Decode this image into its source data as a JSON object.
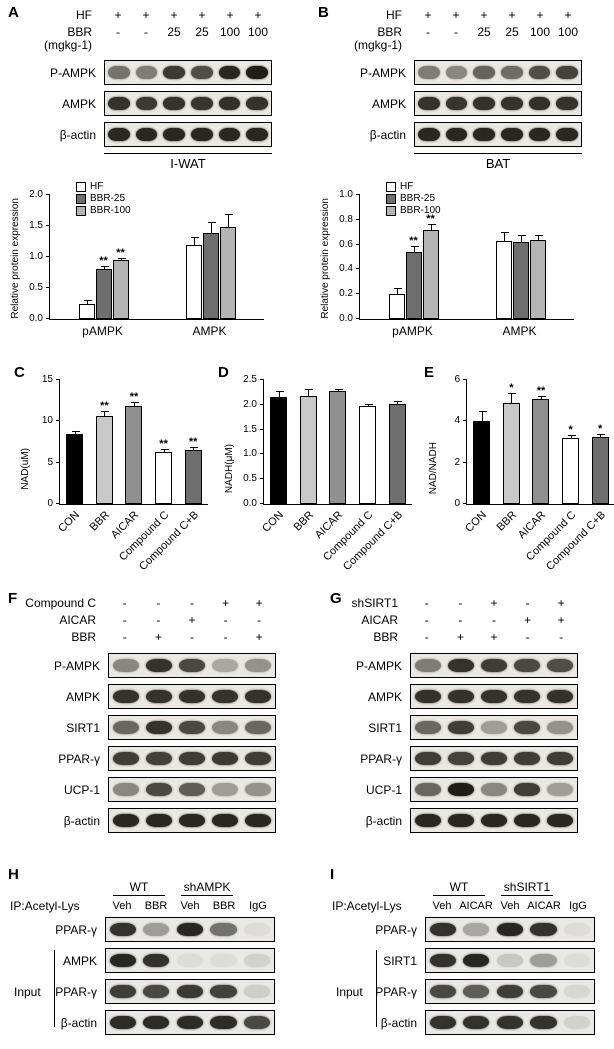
{
  "panelA": {
    "letter": "A",
    "treatments": [
      {
        "label": "HF",
        "values": [
          "+",
          "+",
          "+",
          "+",
          "+",
          "+"
        ]
      },
      {
        "label": "BBR",
        "values": [
          "-",
          "-",
          "25",
          "25",
          "100",
          "100"
        ]
      },
      {
        "label": "(mgkg-1)",
        "values": []
      }
    ],
    "blots": [
      {
        "label": "P-AMPK",
        "lanes": [
          0.55,
          0.5,
          0.82,
          0.72,
          0.9,
          0.95
        ]
      },
      {
        "label": "AMPK",
        "lanes": [
          0.85,
          0.82,
          0.85,
          0.84,
          0.86,
          0.85
        ]
      },
      {
        "label": "β-actin",
        "lanes": [
          0.9,
          0.9,
          0.9,
          0.9,
          0.9,
          0.9
        ]
      }
    ],
    "tissue": "I-WAT"
  },
  "panelB": {
    "letter": "B",
    "treatments": [
      {
        "label": "HF",
        "values": [
          "+",
          "+",
          "+",
          "+",
          "+",
          "+"
        ]
      },
      {
        "label": "BBR",
        "values": [
          "-",
          "-",
          "25",
          "25",
          "100",
          "100"
        ]
      },
      {
        "label": "(mgkg-1)",
        "values": []
      }
    ],
    "blots": [
      {
        "label": "P-AMPK",
        "lanes": [
          0.5,
          0.45,
          0.62,
          0.58,
          0.72,
          0.78
        ]
      },
      {
        "label": "AMPK",
        "lanes": [
          0.85,
          0.84,
          0.85,
          0.85,
          0.86,
          0.85
        ]
      },
      {
        "label": "β-actin",
        "lanes": [
          0.9,
          0.9,
          0.9,
          0.9,
          0.9,
          0.9
        ]
      }
    ],
    "tissue": "BAT"
  },
  "panelC": {
    "letter": "C"
  },
  "panelD": {
    "letter": "D"
  },
  "panelE": {
    "letter": "E"
  },
  "panelF": {
    "letter": "F",
    "treatments": [
      {
        "label": "Compound C",
        "values": [
          "-",
          "-",
          "-",
          "+",
          "+"
        ]
      },
      {
        "label": "AICAR",
        "values": [
          "-",
          "-",
          "+",
          "-",
          "-"
        ]
      },
      {
        "label": "BBR",
        "values": [
          "-",
          "+",
          "-",
          "-",
          "+"
        ]
      }
    ],
    "blots": [
      {
        "label": "P-AMPK",
        "lanes": [
          0.45,
          0.85,
          0.75,
          0.3,
          0.4
        ]
      },
      {
        "label": "AMPK",
        "lanes": [
          0.85,
          0.85,
          0.85,
          0.85,
          0.85
        ]
      },
      {
        "label": "SIRT1",
        "lanes": [
          0.6,
          0.85,
          0.75,
          0.45,
          0.6
        ]
      },
      {
        "label": "PPAR-γ",
        "lanes": [
          0.8,
          0.78,
          0.8,
          0.82,
          0.8
        ]
      },
      {
        "label": "UCP-1",
        "lanes": [
          0.45,
          0.75,
          0.65,
          0.35,
          0.4
        ]
      },
      {
        "label": "β-actin",
        "lanes": [
          0.9,
          0.9,
          0.9,
          0.9,
          0.9
        ]
      }
    ]
  },
  "panelG": {
    "letter": "G",
    "treatments": [
      {
        "label": "shSIRT1",
        "values": [
          "-",
          "-",
          "+",
          "-",
          "+"
        ]
      },
      {
        "label": "AICAR",
        "values": [
          "-",
          "-",
          "-",
          "+",
          "+"
        ]
      },
      {
        "label": "BBR",
        "values": [
          "-",
          "+",
          "+",
          "-",
          "-"
        ]
      }
    ],
    "blots": [
      {
        "label": "P-AMPK",
        "lanes": [
          0.5,
          0.85,
          0.8,
          0.75,
          0.72
        ]
      },
      {
        "label": "AMPK",
        "lanes": [
          0.85,
          0.85,
          0.85,
          0.85,
          0.85
        ]
      },
      {
        "label": "SIRT1",
        "lanes": [
          0.6,
          0.8,
          0.35,
          0.75,
          0.4
        ]
      },
      {
        "label": "PPAR-γ",
        "lanes": [
          0.8,
          0.78,
          0.8,
          0.8,
          0.8
        ]
      },
      {
        "label": "UCP-1",
        "lanes": [
          0.6,
          0.95,
          0.45,
          0.8,
          0.35
        ]
      },
      {
        "label": "β-actin",
        "lanes": [
          0.9,
          0.9,
          0.9,
          0.9,
          0.9
        ]
      }
    ]
  },
  "panelH": {
    "letter": "H",
    "groups": [
      {
        "label": "WT"
      },
      {
        "label": "shAMPK"
      }
    ],
    "ip_label": "IP:Acetyl-Lys",
    "lane_labels": [
      "Veh",
      "BBR",
      "Veh",
      "BBR",
      "IgG"
    ],
    "ip_blots": [
      {
        "label": "PPAR-γ",
        "lanes": [
          0.85,
          0.35,
          0.9,
          0.55,
          0.05
        ]
      }
    ],
    "input_label": "Input",
    "input_blots": [
      {
        "label": "AMPK",
        "lanes": [
          0.9,
          0.85,
          0.05,
          0.05,
          0.1
        ]
      },
      {
        "label": "PPAR-γ",
        "lanes": [
          0.8,
          0.75,
          0.82,
          0.78,
          0.12
        ]
      },
      {
        "label": "β-actin",
        "lanes": [
          0.88,
          0.88,
          0.88,
          0.88,
          0.75
        ]
      }
    ]
  },
  "panelI": {
    "letter": "I",
    "groups": [
      {
        "label": "WT"
      },
      {
        "label": "shSIRT1"
      }
    ],
    "ip_label": "IP:Acetyl-Lys",
    "lane_labels": [
      "Veh",
      "AICAR",
      "Veh",
      "AICAR",
      "IgG"
    ],
    "ip_blots": [
      {
        "label": "PPAR-γ",
        "lanes": [
          0.85,
          0.3,
          0.9,
          0.85,
          0.05
        ]
      }
    ],
    "input_label": "Input",
    "input_blots": [
      {
        "label": "SIRT1",
        "lanes": [
          0.85,
          0.9,
          0.15,
          0.35,
          0.05
        ]
      },
      {
        "label": "PPAR-γ",
        "lanes": [
          0.75,
          0.65,
          0.8,
          0.75,
          0.08
        ]
      },
      {
        "label": "β-actin",
        "lanes": [
          0.85,
          0.85,
          0.85,
          0.85,
          0.1
        ]
      }
    ]
  },
  "chart_data": [
    {
      "id": "chart-a",
      "type": "bar",
      "title": "",
      "ylabel": "Relative protein expression",
      "ylim": [
        0,
        2.0
      ],
      "yticks": [
        "0.0",
        "0.5",
        "1.0",
        "1.5",
        "2.0"
      ],
      "grid": false,
      "legend_position": "top-left",
      "categories": [
        "pAMPK",
        "AMPK"
      ],
      "series": [
        {
          "name": "HF",
          "color": "#ffffff",
          "values": [
            0.25,
            1.2
          ],
          "errors": [
            0.06,
            0.12
          ],
          "sig": [
            "",
            ""
          ]
        },
        {
          "name": "BBR-25",
          "color": "#6e6e6e",
          "values": [
            0.8,
            1.38
          ],
          "errors": [
            0.05,
            0.18
          ],
          "sig": [
            "**",
            ""
          ]
        },
        {
          "name": "BBR-100",
          "color": "#b4b4b4",
          "values": [
            0.95,
            1.48
          ],
          "errors": [
            0.04,
            0.22
          ],
          "sig": [
            "**",
            ""
          ]
        }
      ]
    },
    {
      "id": "chart-b",
      "type": "bar",
      "title": "",
      "ylabel": "Relative protein expression",
      "ylim": [
        0,
        1.0
      ],
      "yticks": [
        "0.0",
        "0.2",
        "0.4",
        "0.6",
        "0.8",
        "1.0"
      ],
      "grid": false,
      "legend_position": "top-left",
      "categories": [
        "pAMPK",
        "AMPK"
      ],
      "series": [
        {
          "name": "HF",
          "color": "#ffffff",
          "values": [
            0.2,
            0.63
          ],
          "errors": [
            0.05,
            0.07
          ],
          "sig": [
            "",
            ""
          ]
        },
        {
          "name": "BBR-25",
          "color": "#6e6e6e",
          "values": [
            0.54,
            0.62
          ],
          "errors": [
            0.05,
            0.06
          ],
          "sig": [
            "**",
            ""
          ]
        },
        {
          "name": "BBR-100",
          "color": "#b4b4b4",
          "values": [
            0.72,
            0.64
          ],
          "errors": [
            0.05,
            0.04
          ],
          "sig": [
            "**",
            ""
          ]
        }
      ]
    },
    {
      "id": "chart-c",
      "type": "bar",
      "title": "",
      "ylabel": "NAD(uM)",
      "ylim": [
        0,
        15
      ],
      "yticks": [
        "0",
        "5",
        "10",
        "15"
      ],
      "grid": false,
      "categories": [
        "CON",
        "BBR",
        "AICAR",
        "Compound C",
        "Compound C+B"
      ],
      "values": [
        8.5,
        10.7,
        11.8,
        6.3,
        6.5
      ],
      "errors": [
        0.3,
        0.5,
        0.5,
        0.3,
        0.4
      ],
      "colors": [
        "#000000",
        "#c8c8c8",
        "#909090",
        "#ffffff",
        "#6e6e6e"
      ],
      "sig": [
        "",
        "**",
        "**",
        "**",
        "**"
      ]
    },
    {
      "id": "chart-d",
      "type": "bar",
      "title": "",
      "ylabel": "NADH(μM)",
      "ylim": [
        0,
        2.5
      ],
      "yticks": [
        "0.0",
        "0.5",
        "1.0",
        "1.5",
        "2.0",
        "2.5"
      ],
      "grid": false,
      "categories": [
        "CON",
        "BBR",
        "AICAR",
        "Compound C",
        "Compound C+B"
      ],
      "values": [
        2.15,
        2.18,
        2.27,
        1.98,
        2.02
      ],
      "errors": [
        0.13,
        0.13,
        0.04,
        0.04,
        0.05
      ],
      "colors": [
        "#000000",
        "#c8c8c8",
        "#909090",
        "#ffffff",
        "#6e6e6e"
      ],
      "sig": [
        "",
        "",
        "",
        "",
        ""
      ]
    },
    {
      "id": "chart-e",
      "type": "bar",
      "title": "",
      "ylabel": "NAD/NADH",
      "ylim": [
        0,
        6
      ],
      "yticks": [
        "0",
        "2",
        "4",
        "6"
      ],
      "grid": false,
      "categories": [
        "CON",
        "BBR",
        "AICAR",
        "Compound C",
        "Compound C+B"
      ],
      "values": [
        4.0,
        4.9,
        5.1,
        3.2,
        3.25
      ],
      "errors": [
        0.5,
        0.45,
        0.15,
        0.15,
        0.12
      ],
      "colors": [
        "#000000",
        "#c8c8c8",
        "#909090",
        "#ffffff",
        "#6e6e6e"
      ],
      "sig": [
        "",
        "*",
        "**",
        "*",
        "*"
      ]
    }
  ]
}
